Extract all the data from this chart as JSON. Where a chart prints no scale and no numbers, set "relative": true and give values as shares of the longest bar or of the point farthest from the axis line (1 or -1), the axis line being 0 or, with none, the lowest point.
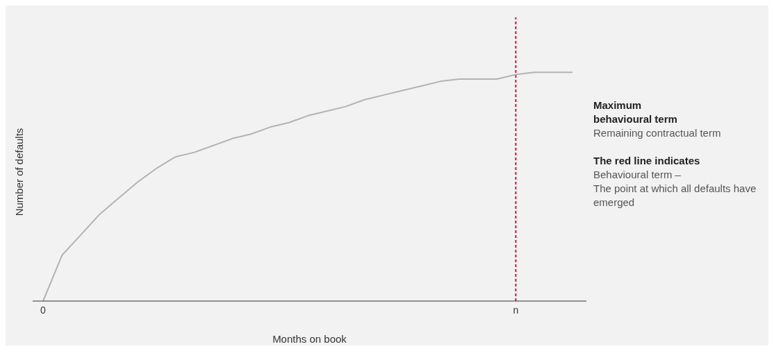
{
  "chart_data": {
    "type": "line",
    "relative": true,
    "xlabel": "Months on book",
    "ylabel": "Number of defaults",
    "categories": [
      "0",
      null,
      null,
      null,
      null,
      null,
      null,
      null,
      null,
      null,
      null,
      null,
      null,
      null,
      null,
      null,
      null,
      null,
      null,
      null,
      null,
      null,
      null,
      null,
      null,
      "n",
      null,
      null,
      null
    ],
    "series": [
      {
        "color": "#b3b3b3",
        "values": [
          0,
          0.2,
          0.29,
          0.38,
          0.45,
          0.52,
          0.58,
          0.63,
          0.65,
          0.68,
          0.71,
          0.73,
          0.76,
          0.78,
          0.81,
          0.83,
          0.85,
          0.88,
          0.9,
          0.92,
          0.94,
          0.96,
          0.97,
          0.97,
          0.97,
          0.99,
          1,
          1,
          1
        ]
      }
    ],
    "ref_lines": [
      {
        "axis": "x",
        "value": "n",
        "color": "#d2103c",
        "line_style": "dotted"
      }
    ],
    "annotations": [
      "Maximum behavioural term",
      "Remaining contractual term",
      "The red line indicates",
      "Behavioural term –\nThe point at which all defaults have emerged"
    ]
  }
}
